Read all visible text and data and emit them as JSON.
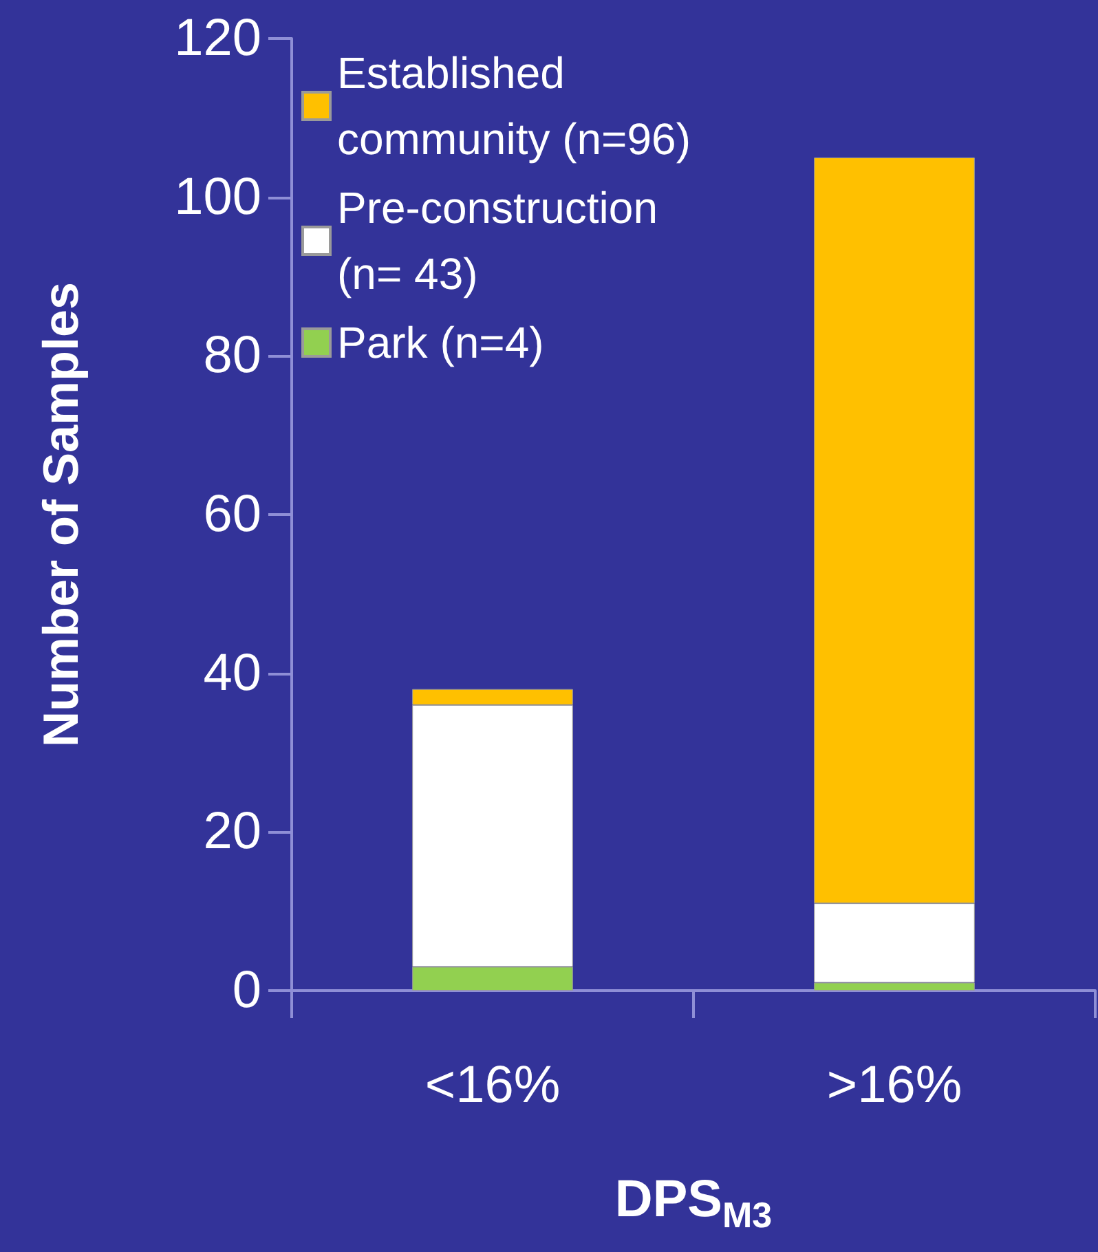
{
  "chart_data": {
    "type": "bar",
    "xlabel": "DPS$_{M3}$",
    "ylabel": "Number of Samples",
    "categories": [
      "<16%",
      ">16%"
    ],
    "series": [
      {
        "name": "Park (n=4)",
        "color": "#92d050",
        "values": [
          3,
          1
        ]
      },
      {
        "name": "Pre-construction (n= 43)",
        "color": "#ffffff",
        "values": [
          33,
          10
        ]
      },
      {
        "name": "Established community (n=96)",
        "color": "#ffc000",
        "values": [
          2,
          94
        ]
      }
    ],
    "stacked": true,
    "ylim": [
      0,
      120
    ],
    "yticks": [
      0,
      20,
      40,
      60,
      80,
      100,
      120
    ],
    "grid": false,
    "legend": "top left"
  }
}
